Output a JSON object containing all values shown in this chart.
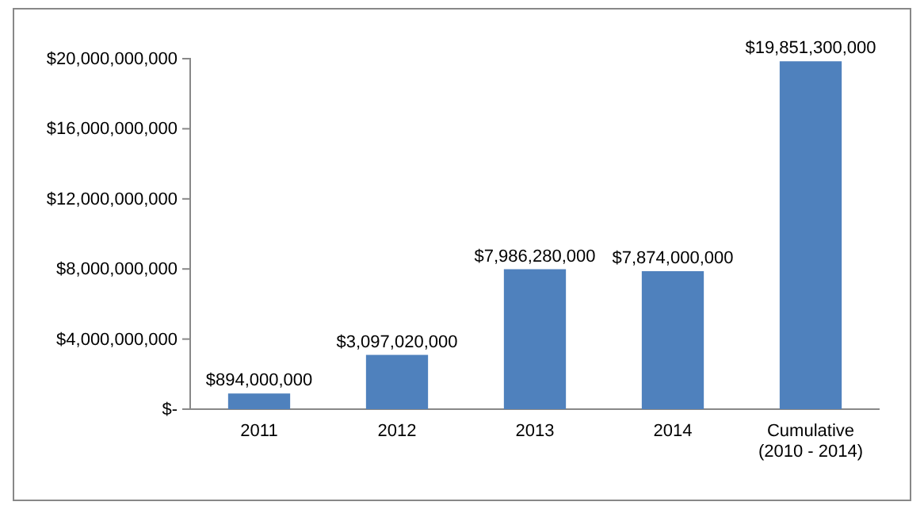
{
  "chart_data": {
    "type": "bar",
    "categories": [
      "2011",
      "2012",
      "2013",
      "2014",
      "Cumulative (2010 - 2014)"
    ],
    "values": [
      894000000,
      3097020000,
      7986280000,
      7874000000,
      19851300000
    ],
    "color": "#4f81bd",
    "ylim": [
      0,
      20000000000
    ],
    "yticks": [
      {
        "value": 0,
        "label": "$-"
      },
      {
        "value": 4000000000,
        "label": "$4,000,000,000"
      },
      {
        "value": 8000000000,
        "label": "$8,000,000,000"
      },
      {
        "value": 12000000000,
        "label": "$12,000,000,000"
      },
      {
        "value": 16000000000,
        "label": "$16,000,000,000"
      },
      {
        "value": 20000000000,
        "label": "$20,000,000,000"
      }
    ],
    "value_labels": [
      "$894,000,000",
      "$3,097,020,000",
      "$7,986,280,000",
      "$7,874,000,000",
      "$19,851,300,000"
    ],
    "grid": false
  }
}
